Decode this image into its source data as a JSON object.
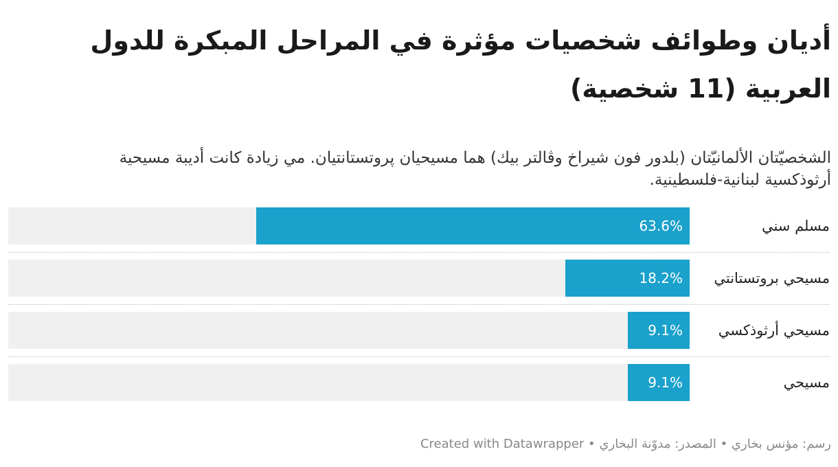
{
  "chart_data": {
    "type": "bar",
    "orientation": "horizontal",
    "title": "أديان وطوائف شخصيات مؤثرة في المراحل المبكرة للدول العربية (11 شخصية)",
    "subtitle": "الشخصيّتان الألمانيّتان (بلدور فون شيراخ وڤالتر بيك) هما مسيحيان پروتستانتيان. مي زيادة كانت أديبة مسيحية أرثوذكسية لبنانية-فلسطينية.",
    "categories": [
      "مسلم سني",
      "مسيحي بروتستانتي",
      "مسيحي أرثوذكسي",
      "مسيحي"
    ],
    "values": [
      63.6,
      18.2,
      9.1,
      9.1
    ],
    "value_labels": [
      "63.6%",
      "18.2%",
      "9.1%",
      "9.1%"
    ],
    "xlim": [
      0,
      100
    ],
    "bar_color": "#1aa1cc",
    "track_color": "#f0f0f0"
  },
  "footer": {
    "byline_label": "رسم:",
    "byline_name": "مؤنس بخاري",
    "source_label": "المصدر:",
    "source_name": "مدوّنة البخاري",
    "credit": "Created with Datawrapper",
    "separator": "•"
  }
}
